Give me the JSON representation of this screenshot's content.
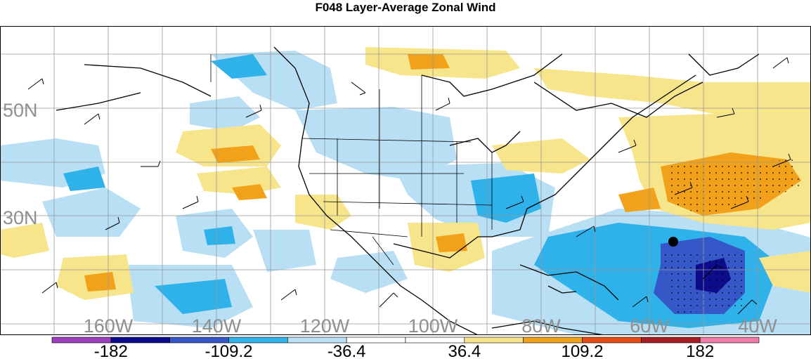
{
  "title": "F048 Layer-Average Zonal Wind",
  "lat_labels": [
    "50N",
    "30N"
  ],
  "lon_labels": [
    "160W",
    "140W",
    "120W",
    "100W",
    "80W",
    "60W",
    "40W"
  ],
  "colorbar": {
    "colors": [
      "#9b3fc0",
      "#0c0c8c",
      "#3657c8",
      "#2fb2ea",
      "#b9dff5",
      "#ffffff",
      "#ffffff",
      "#f7e58c",
      "#f2a21a",
      "#e44a12",
      "#a51e24",
      "#f07aa8"
    ],
    "tick_labels": [
      "-182",
      "-109.2",
      "-36.4",
      "36.4",
      "109.2",
      "182"
    ]
  },
  "chart_data": {
    "type": "heatmap",
    "title": "F048 Layer-Average Zonal Wind",
    "lat_labels": [
      "50N",
      "30N"
    ],
    "lon_labels": [
      "160W",
      "140W",
      "120W",
      "100W",
      "80W",
      "60W",
      "40W"
    ],
    "colorbar_ticks": [
      -182,
      -109.2,
      -36.4,
      36.4,
      109.2,
      182
    ],
    "color_levels": 12
  }
}
